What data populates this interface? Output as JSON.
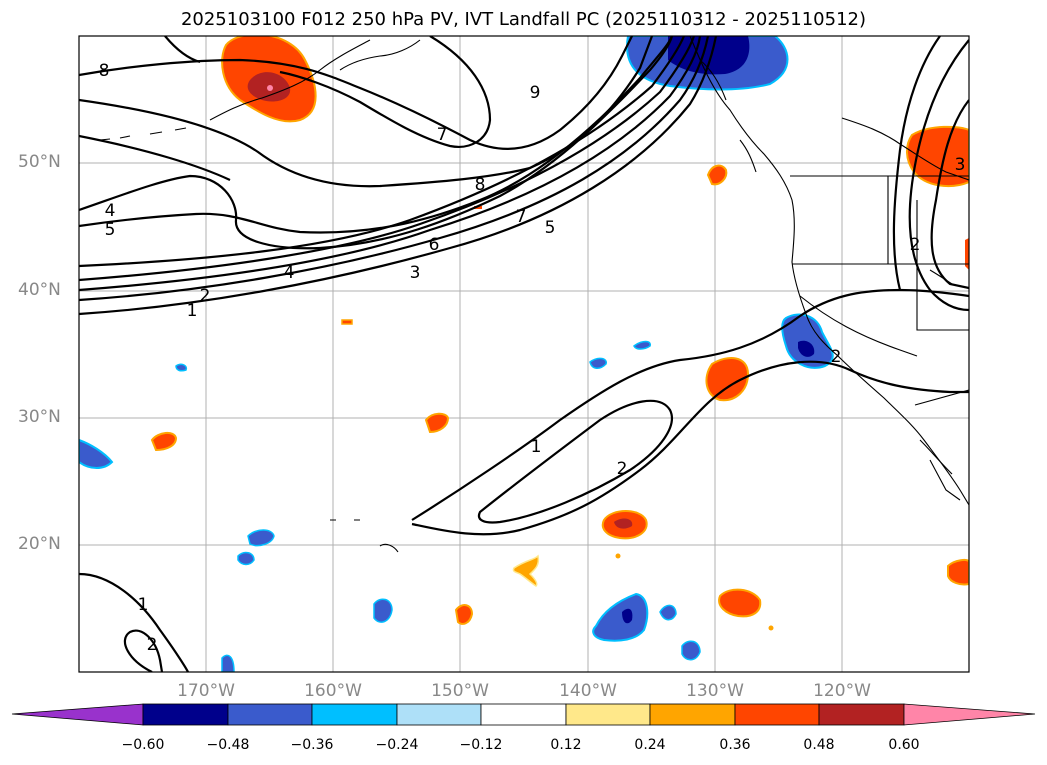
{
  "title": "2025103100 F012 250 hPa PV, IVT Landfall PC (2025110312 - 2025110512)",
  "lat_labels": [
    "20°N",
    "30°N",
    "40°N",
    "50°N"
  ],
  "lon_labels": [
    "170°W",
    "160°W",
    "150°W",
    "140°W",
    "130°W",
    "120°W"
  ],
  "pv_contour_labels": [
    "1",
    "2",
    "3",
    "4",
    "5",
    "6",
    "7",
    "8",
    "9"
  ],
  "colorbar": {
    "ticks": [
      "−0.60",
      "−0.48",
      "−0.36",
      "−0.24",
      "−0.12",
      "0.12",
      "0.24",
      "0.36",
      "0.48",
      "0.60"
    ],
    "colors": [
      "#9932cc",
      "#00008b",
      "#3a5bcc",
      "#00bfff",
      "#aee0f8",
      "#ffffff",
      "#ffe88a",
      "#ffa500",
      "#ff4500",
      "#b22222",
      "#ff85a8"
    ]
  },
  "chart_data": {
    "type": "map",
    "title": "2025103100 F012 250 hPa PV, IVT Landfall PC (2025110312 - 2025110512)",
    "lat_range": [
      10,
      60
    ],
    "lon_range": [
      -180,
      -110
    ],
    "pv_contour_levels": [
      1,
      2,
      3,
      4,
      5,
      6,
      7,
      8,
      9
    ],
    "pc_levels": [
      -0.6,
      -0.48,
      -0.36,
      -0.24,
      -0.12,
      0.12,
      0.24,
      0.36,
      0.48,
      0.6
    ]
  }
}
